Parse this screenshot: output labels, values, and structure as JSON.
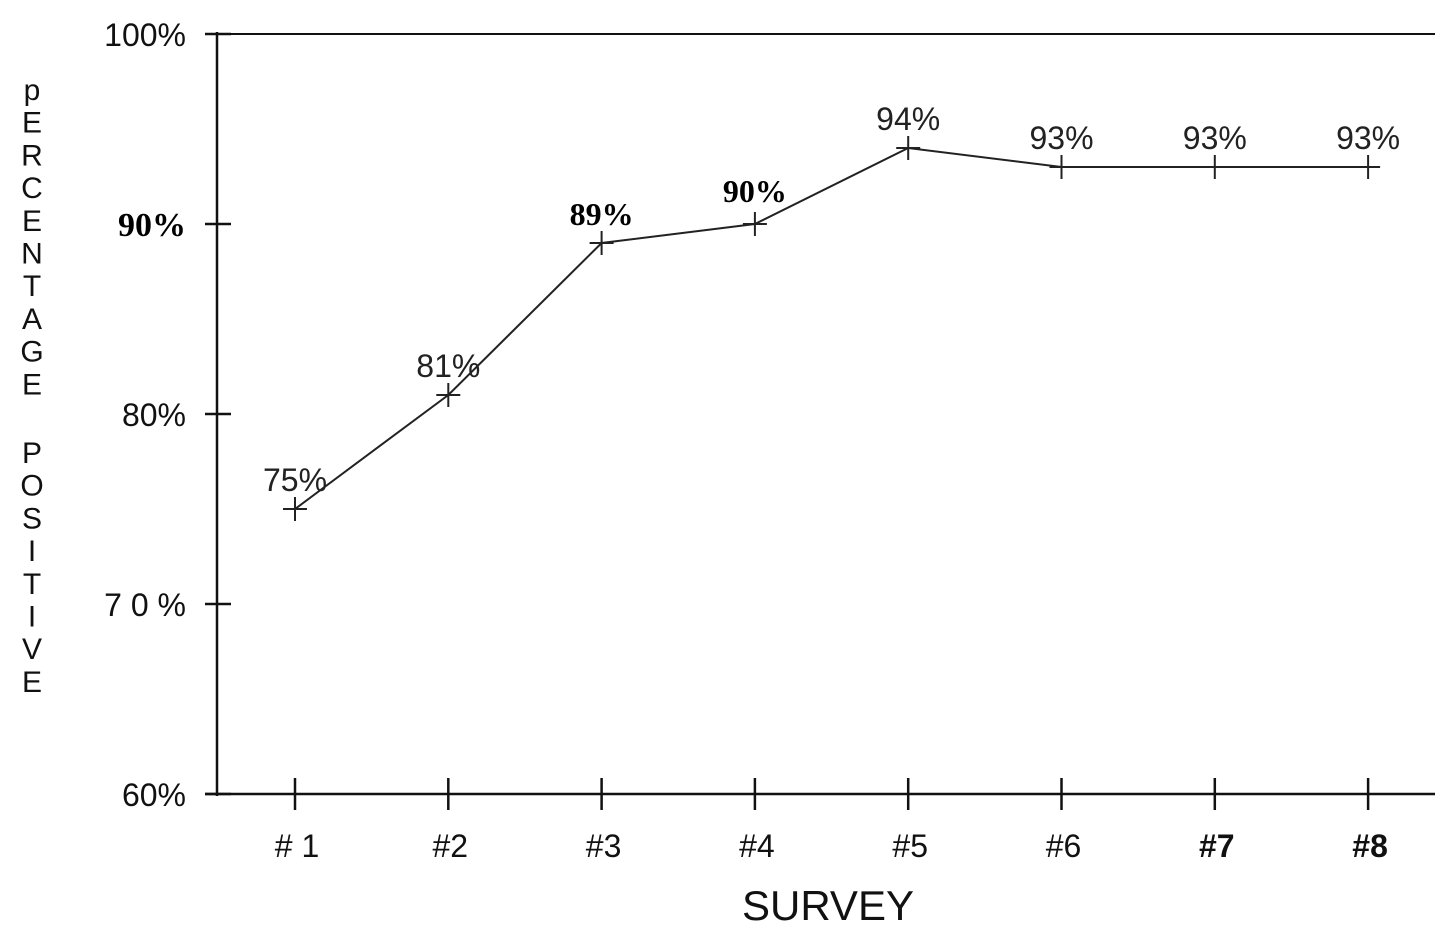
{
  "chart_data": {
    "type": "line",
    "title": "",
    "xlabel": "SURVEY",
    "ylabel": "pERCENTAGE POSITIVE",
    "categories": [
      "# 1",
      "#2",
      "#3",
      "#4",
      "#5",
      "#6",
      "#7",
      "#8"
    ],
    "bold_categories": [
      "#7",
      "#8"
    ],
    "ylim": [
      60,
      100
    ],
    "y_ticks": [
      {
        "value": 100,
        "label": "100%",
        "style": "normal"
      },
      {
        "value": 90,
        "label": "90%",
        "style": "bold-serif"
      },
      {
        "value": 80,
        "label": "80%",
        "style": "normal"
      },
      {
        "value": 70,
        "label": "7 0 %",
        "style": "normal"
      },
      {
        "value": 60,
        "label": "60%",
        "style": "normal"
      }
    ],
    "series": [
      {
        "values": [
          75,
          81,
          89,
          90,
          94,
          93,
          93,
          93
        ],
        "data_labels": [
          "75%",
          "81%",
          "89%",
          "90%",
          "94%",
          "93%",
          "93%",
          "93%"
        ],
        "label_styles": [
          "normal",
          "normal",
          "bold-serif",
          "bold-serif-small",
          "normal",
          "normal",
          "normal",
          "normal"
        ]
      }
    ],
    "grid": false,
    "legend": "none",
    "colors": {
      "line": "#222222",
      "axis": "#111111",
      "background": "#ffffff"
    }
  }
}
